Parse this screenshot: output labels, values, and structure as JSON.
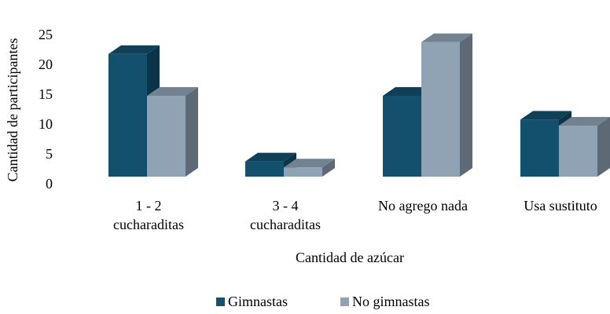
{
  "chart_data": {
    "type": "bar3d",
    "x_label": "Cantidad de azúcar",
    "y_label": "Cantidad de participantes",
    "categories": [
      "1 - 2\ncucharaditas",
      "3 - 4\ncucharaditas",
      "No agrego nada",
      "Usa sustituto"
    ],
    "series": [
      {
        "name": "Gimnastas",
        "color": "#13506e",
        "values": [
          22,
          4,
          15,
          11
        ]
      },
      {
        "name": "No gimnastas",
        "color": "#8fa3b5",
        "values": [
          15,
          3,
          24,
          10
        ]
      }
    ],
    "ylim": [
      0,
      25
    ],
    "yticks": [
      0,
      5,
      10,
      15,
      20,
      25
    ],
    "grid": false,
    "legend": "bottom"
  }
}
